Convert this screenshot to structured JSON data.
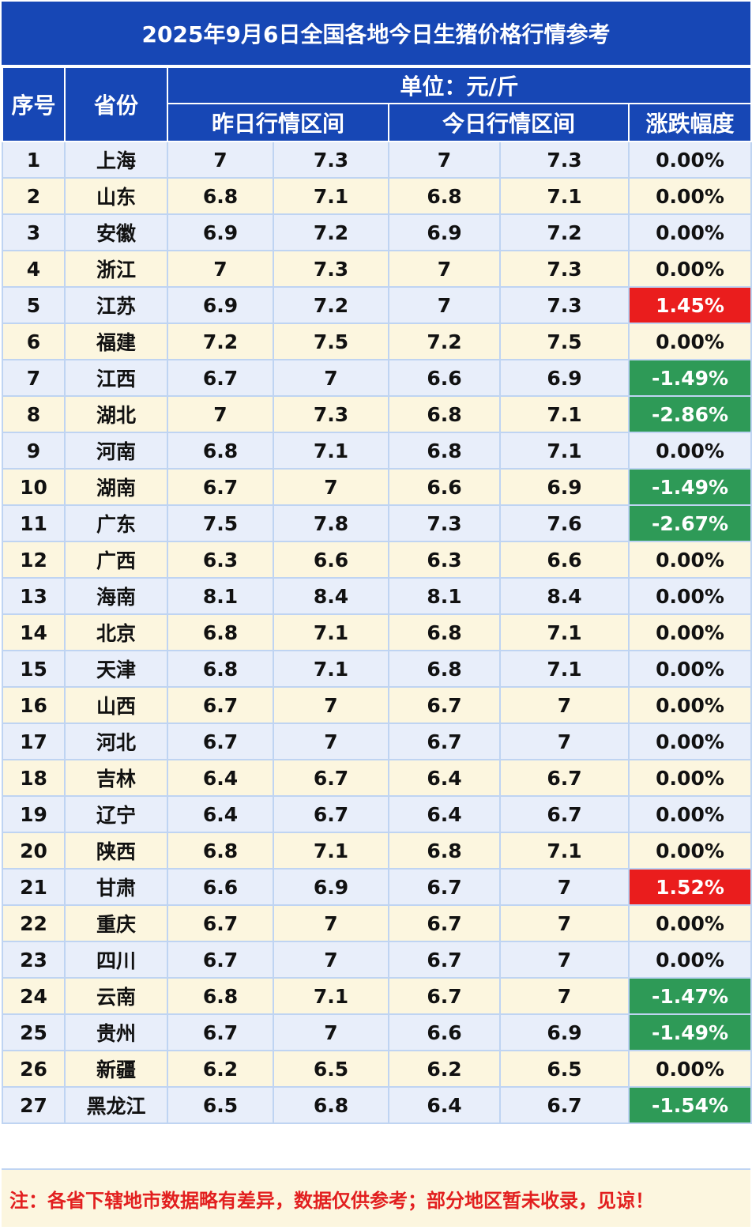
{
  "title": "2025年9月6日全国各地今日生猪价格行情参考",
  "headers": {
    "index": "序号",
    "province": "省份",
    "unit": "单位：元/斤",
    "yesterday": "昨日行情区间",
    "today": "今日行情区间",
    "change": "涨跌幅度"
  },
  "rows": [
    {
      "idx": "1",
      "prov": "上海",
      "ylo": "7",
      "yhi": "7.3",
      "tlo": "7",
      "thi": "7.3",
      "chg": "0.00%",
      "dir": "flat"
    },
    {
      "idx": "2",
      "prov": "山东",
      "ylo": "6.8",
      "yhi": "7.1",
      "tlo": "6.8",
      "thi": "7.1",
      "chg": "0.00%",
      "dir": "flat"
    },
    {
      "idx": "3",
      "prov": "安徽",
      "ylo": "6.9",
      "yhi": "7.2",
      "tlo": "6.9",
      "thi": "7.2",
      "chg": "0.00%",
      "dir": "flat"
    },
    {
      "idx": "4",
      "prov": "浙江",
      "ylo": "7",
      "yhi": "7.3",
      "tlo": "7",
      "thi": "7.3",
      "chg": "0.00%",
      "dir": "flat"
    },
    {
      "idx": "5",
      "prov": "江苏",
      "ylo": "6.9",
      "yhi": "7.2",
      "tlo": "7",
      "thi": "7.3",
      "chg": "1.45%",
      "dir": "up"
    },
    {
      "idx": "6",
      "prov": "福建",
      "ylo": "7.2",
      "yhi": "7.5",
      "tlo": "7.2",
      "thi": "7.5",
      "chg": "0.00%",
      "dir": "flat"
    },
    {
      "idx": "7",
      "prov": "江西",
      "ylo": "6.7",
      "yhi": "7",
      "tlo": "6.6",
      "thi": "6.9",
      "chg": "-1.49%",
      "dir": "down"
    },
    {
      "idx": "8",
      "prov": "湖北",
      "ylo": "7",
      "yhi": "7.3",
      "tlo": "6.8",
      "thi": "7.1",
      "chg": "-2.86%",
      "dir": "down"
    },
    {
      "idx": "9",
      "prov": "河南",
      "ylo": "6.8",
      "yhi": "7.1",
      "tlo": "6.8",
      "thi": "7.1",
      "chg": "0.00%",
      "dir": "flat"
    },
    {
      "idx": "10",
      "prov": "湖南",
      "ylo": "6.7",
      "yhi": "7",
      "tlo": "6.6",
      "thi": "6.9",
      "chg": "-1.49%",
      "dir": "down"
    },
    {
      "idx": "11",
      "prov": "广东",
      "ylo": "7.5",
      "yhi": "7.8",
      "tlo": "7.3",
      "thi": "7.6",
      "chg": "-2.67%",
      "dir": "down"
    },
    {
      "idx": "12",
      "prov": "广西",
      "ylo": "6.3",
      "yhi": "6.6",
      "tlo": "6.3",
      "thi": "6.6",
      "chg": "0.00%",
      "dir": "flat"
    },
    {
      "idx": "13",
      "prov": "海南",
      "ylo": "8.1",
      "yhi": "8.4",
      "tlo": "8.1",
      "thi": "8.4",
      "chg": "0.00%",
      "dir": "flat"
    },
    {
      "idx": "14",
      "prov": "北京",
      "ylo": "6.8",
      "yhi": "7.1",
      "tlo": "6.8",
      "thi": "7.1",
      "chg": "0.00%",
      "dir": "flat"
    },
    {
      "idx": "15",
      "prov": "天津",
      "ylo": "6.8",
      "yhi": "7.1",
      "tlo": "6.8",
      "thi": "7.1",
      "chg": "0.00%",
      "dir": "flat"
    },
    {
      "idx": "16",
      "prov": "山西",
      "ylo": "6.7",
      "yhi": "7",
      "tlo": "6.7",
      "thi": "7",
      "chg": "0.00%",
      "dir": "flat"
    },
    {
      "idx": "17",
      "prov": "河北",
      "ylo": "6.7",
      "yhi": "7",
      "tlo": "6.7",
      "thi": "7",
      "chg": "0.00%",
      "dir": "flat"
    },
    {
      "idx": "18",
      "prov": "吉林",
      "ylo": "6.4",
      "yhi": "6.7",
      "tlo": "6.4",
      "thi": "6.7",
      "chg": "0.00%",
      "dir": "flat"
    },
    {
      "idx": "19",
      "prov": "辽宁",
      "ylo": "6.4",
      "yhi": "6.7",
      "tlo": "6.4",
      "thi": "6.7",
      "chg": "0.00%",
      "dir": "flat"
    },
    {
      "idx": "20",
      "prov": "陕西",
      "ylo": "6.8",
      "yhi": "7.1",
      "tlo": "6.8",
      "thi": "7.1",
      "chg": "0.00%",
      "dir": "flat"
    },
    {
      "idx": "21",
      "prov": "甘肃",
      "ylo": "6.6",
      "yhi": "6.9",
      "tlo": "6.7",
      "thi": "7",
      "chg": "1.52%",
      "dir": "up"
    },
    {
      "idx": "22",
      "prov": "重庆",
      "ylo": "6.7",
      "yhi": "7",
      "tlo": "6.7",
      "thi": "7",
      "chg": "0.00%",
      "dir": "flat"
    },
    {
      "idx": "23",
      "prov": "四川",
      "ylo": "6.7",
      "yhi": "7",
      "tlo": "6.7",
      "thi": "7",
      "chg": "0.00%",
      "dir": "flat"
    },
    {
      "idx": "24",
      "prov": "云南",
      "ylo": "6.8",
      "yhi": "7.1",
      "tlo": "6.7",
      "thi": "7",
      "chg": "-1.47%",
      "dir": "down"
    },
    {
      "idx": "25",
      "prov": "贵州",
      "ylo": "6.7",
      "yhi": "7",
      "tlo": "6.6",
      "thi": "6.9",
      "chg": "-1.49%",
      "dir": "down"
    },
    {
      "idx": "26",
      "prov": "新疆",
      "ylo": "6.2",
      "yhi": "6.5",
      "tlo": "6.2",
      "thi": "6.5",
      "chg": "0.00%",
      "dir": "flat"
    },
    {
      "idx": "27",
      "prov": "黑龙江",
      "ylo": "6.5",
      "yhi": "6.8",
      "tlo": "6.4",
      "thi": "6.7",
      "chg": "-1.54%",
      "dir": "down"
    }
  ],
  "note": "注：各省下辖地市数据略有差异，数据仅供参考；部分地区暂未收录，见谅！",
  "colors": {
    "header_blue": "#1747b5",
    "row_blue": "#e8eefa",
    "row_cream": "#fcf6df",
    "rise_red": "#ea1d1d",
    "fall_green": "#2e9a57",
    "note_red": "#e21f1f"
  }
}
